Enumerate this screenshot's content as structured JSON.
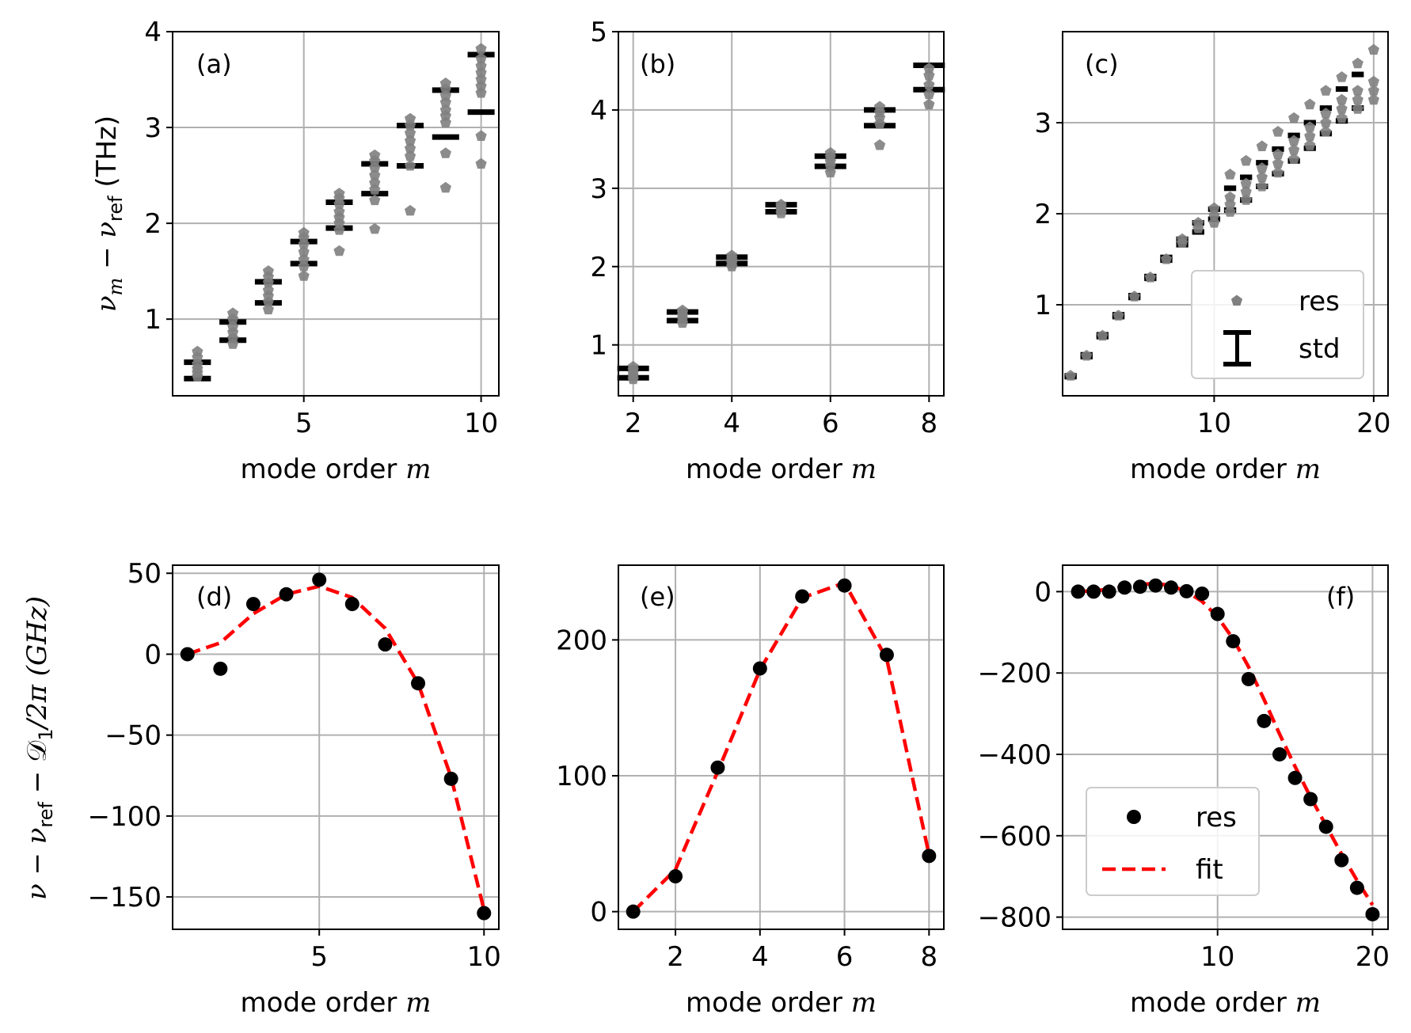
{
  "colors": {
    "res_marker": "#808080",
    "std_bar": "#000000",
    "fit_line": "#ff0000",
    "grid": "#b0b0b0",
    "res_dot": "#000000"
  },
  "labels": {
    "xlabel_prefix": "mode order ",
    "xlabel_var": "m",
    "ylabel_top": "ν",
    "ylabel_top_sub": "m",
    "ylabel_top_minus": " − ν",
    "ylabel_top_ref": "ref",
    "ylabel_top_unit": " (THz)",
    "ylabel_bottom": "ν − ν",
    "ylabel_bottom_ref": "ref",
    "ylabel_bottom_rest": " − 𝒟",
    "ylabel_bottom_sub": "1",
    "ylabel_bottom_end": "/2π  (GHz)"
  },
  "legend_top": {
    "res": "res",
    "std": "std"
  },
  "legend_bottom": {
    "res": "res",
    "fit": "fit"
  },
  "chart_data": [
    {
      "panel": "(a)",
      "type": "scatter",
      "xlabel": "mode order m",
      "ylabel": "ν_m − ν_ref (THz)",
      "xlim": [
        1.3,
        10.5
      ],
      "ylim": [
        0.2,
        4.0
      ],
      "xticks": [
        5,
        10
      ],
      "yticks": [
        1,
        2,
        3,
        4
      ],
      "grid": true,
      "std_bars": [
        {
          "x": 2,
          "low": 0.38,
          "high": 0.55
        },
        {
          "x": 3,
          "low": 0.78,
          "high": 0.97
        },
        {
          "x": 4,
          "low": 1.17,
          "high": 1.39
        },
        {
          "x": 5,
          "low": 1.58,
          "high": 1.81
        },
        {
          "x": 6,
          "low": 1.95,
          "high": 2.22
        },
        {
          "x": 7,
          "low": 2.31,
          "high": 2.62
        },
        {
          "x": 8,
          "low": 2.6,
          "high": 3.02
        },
        {
          "x": 9,
          "low": 2.9,
          "high": 3.39
        },
        {
          "x": 10,
          "low": 3.16,
          "high": 3.76
        }
      ],
      "res_points": [
        {
          "x": 2,
          "y": [
            0.4,
            0.44,
            0.48,
            0.53,
            0.6,
            0.66
          ]
        },
        {
          "x": 3,
          "y": [
            0.74,
            0.8,
            0.86,
            0.92,
            1.0,
            1.06
          ]
        },
        {
          "x": 4,
          "y": [
            1.1,
            1.18,
            1.24,
            1.3,
            1.38,
            1.44,
            1.5
          ]
        },
        {
          "x": 5,
          "y": [
            1.45,
            1.55,
            1.62,
            1.7,
            1.78,
            1.85,
            1.9
          ]
        },
        {
          "x": 6,
          "y": [
            1.71,
            1.93,
            2.0,
            2.06,
            2.12,
            2.2,
            2.26,
            2.31
          ]
        },
        {
          "x": 7,
          "y": [
            1.94,
            2.24,
            2.35,
            2.42,
            2.5,
            2.58,
            2.65,
            2.71
          ]
        },
        {
          "x": 8,
          "y": [
            2.13,
            2.6,
            2.7,
            2.78,
            2.86,
            2.94,
            3.02,
            3.09
          ]
        },
        {
          "x": 9,
          "y": [
            2.37,
            2.73,
            3.05,
            3.12,
            3.18,
            3.26,
            3.33,
            3.4,
            3.46
          ]
        },
        {
          "x": 10,
          "y": [
            2.62,
            2.91,
            3.36,
            3.43,
            3.5,
            3.57,
            3.64,
            3.72,
            3.82
          ]
        }
      ],
      "legend": null
    },
    {
      "panel": "(b)",
      "type": "scatter",
      "xlabel": "mode order m",
      "xlim": [
        1.7,
        8.3
      ],
      "ylim": [
        0.35,
        5.0
      ],
      "xticks": [
        2,
        4,
        6,
        8
      ],
      "yticks": [
        1,
        2,
        3,
        4,
        5
      ],
      "grid": true,
      "std_bars": [
        {
          "x": 2,
          "low": 0.58,
          "high": 0.7
        },
        {
          "x": 3,
          "low": 1.31,
          "high": 1.42
        },
        {
          "x": 4,
          "low": 2.04,
          "high": 2.12
        },
        {
          "x": 5,
          "low": 2.7,
          "high": 2.79
        },
        {
          "x": 6,
          "low": 3.28,
          "high": 3.41
        },
        {
          "x": 7,
          "low": 3.8,
          "high": 4.0
        },
        {
          "x": 8,
          "low": 4.26,
          "high": 4.57
        }
      ],
      "res_points": [
        {
          "x": 2,
          "y": [
            0.56,
            0.6,
            0.64,
            0.68,
            0.72
          ]
        },
        {
          "x": 3,
          "y": [
            1.28,
            1.33,
            1.37,
            1.41,
            1.44
          ]
        },
        {
          "x": 4,
          "y": [
            2.0,
            2.04,
            2.08,
            2.11,
            2.14
          ]
        },
        {
          "x": 5,
          "y": [
            2.68,
            2.72,
            2.76,
            2.79
          ]
        },
        {
          "x": 6,
          "y": [
            3.2,
            3.28,
            3.34,
            3.4,
            3.45
          ]
        },
        {
          "x": 7,
          "y": [
            3.55,
            3.82,
            3.9,
            3.97,
            4.04
          ]
        },
        {
          "x": 8,
          "y": [
            4.07,
            4.2,
            4.32,
            4.44,
            4.53
          ]
        }
      ],
      "legend": null
    },
    {
      "panel": "(c)",
      "type": "scatter",
      "xlabel": "mode order m",
      "xlim": [
        0.5,
        20.9
      ],
      "ylim": [
        0.0,
        4.0
      ],
      "xticks": [
        10,
        20
      ],
      "yticks": [
        1,
        2,
        3
      ],
      "grid": true,
      "std_bars": [
        {
          "x": 1,
          "low": 0.21,
          "high": 0.22
        },
        {
          "x": 2,
          "low": 0.43,
          "high": 0.45
        },
        {
          "x": 3,
          "low": 0.65,
          "high": 0.67
        },
        {
          "x": 4,
          "low": 0.87,
          "high": 0.89
        },
        {
          "x": 5,
          "low": 1.08,
          "high": 1.1
        },
        {
          "x": 6,
          "low": 1.29,
          "high": 1.31
        },
        {
          "x": 7,
          "low": 1.49,
          "high": 1.52
        },
        {
          "x": 8,
          "low": 1.66,
          "high": 1.72
        },
        {
          "x": 9,
          "low": 1.8,
          "high": 1.9
        },
        {
          "x": 10,
          "low": 1.94,
          "high": 2.05
        },
        {
          "x": 11,
          "low": 2.04,
          "high": 2.28
        },
        {
          "x": 12,
          "low": 2.15,
          "high": 2.4
        },
        {
          "x": 13,
          "low": 2.3,
          "high": 2.56
        },
        {
          "x": 14,
          "low": 2.44,
          "high": 2.71
        },
        {
          "x": 15,
          "low": 2.58,
          "high": 2.86
        },
        {
          "x": 16,
          "low": 2.72,
          "high": 3.0
        },
        {
          "x": 17,
          "low": 2.88,
          "high": 3.16
        },
        {
          "x": 18,
          "low": 3.02,
          "high": 3.37
        },
        {
          "x": 19,
          "low": 3.16,
          "high": 3.53
        }
      ],
      "res_points": [
        {
          "x": 1,
          "y": [
            0.22
          ]
        },
        {
          "x": 2,
          "y": [
            0.44
          ]
        },
        {
          "x": 3,
          "y": [
            0.66
          ]
        },
        {
          "x": 4,
          "y": [
            0.88
          ]
        },
        {
          "x": 5,
          "y": [
            1.09
          ]
        },
        {
          "x": 6,
          "y": [
            1.3
          ]
        },
        {
          "x": 7,
          "y": [
            1.5
          ]
        },
        {
          "x": 8,
          "y": [
            1.68,
            1.72
          ]
        },
        {
          "x": 9,
          "y": [
            1.84,
            1.9
          ]
        },
        {
          "x": 10,
          "y": [
            1.9,
            1.98,
            2.06
          ]
        },
        {
          "x": 11,
          "y": [
            2.02,
            2.1,
            2.18,
            2.43
          ]
        },
        {
          "x": 12,
          "y": [
            2.15,
            2.24,
            2.33,
            2.58
          ]
        },
        {
          "x": 13,
          "y": [
            2.3,
            2.4,
            2.5,
            2.74
          ]
        },
        {
          "x": 14,
          "y": [
            2.45,
            2.55,
            2.65,
            2.9
          ]
        },
        {
          "x": 15,
          "y": [
            2.6,
            2.7,
            2.8,
            3.05
          ]
        },
        {
          "x": 16,
          "y": [
            2.75,
            2.85,
            2.95,
            3.2
          ]
        },
        {
          "x": 17,
          "y": [
            2.9,
            3.0,
            3.1,
            3.35
          ]
        },
        {
          "x": 18,
          "y": [
            3.05,
            3.15,
            3.25,
            3.5
          ]
        },
        {
          "x": 19,
          "y": [
            3.15,
            3.25,
            3.35,
            3.65
          ]
        },
        {
          "x": 20,
          "y": [
            3.25,
            3.35,
            3.45,
            3.8
          ]
        }
      ],
      "legend": {
        "placement": "lower right",
        "entries": [
          "res",
          "std"
        ]
      }
    },
    {
      "panel": "(d)",
      "type": "scatter",
      "xlabel": "mode order m",
      "ylabel": "ν − ν_ref − 𝒟_1/2π  (GHz)",
      "xlim": [
        0.55,
        10.45
      ],
      "ylim": [
        -170,
        55
      ],
      "xticks": [
        5,
        10
      ],
      "yticks": [
        -150,
        -100,
        -50,
        0,
        50
      ],
      "grid": true,
      "res": {
        "x": [
          1,
          2,
          3,
          4,
          5,
          6,
          7,
          8,
          9,
          10
        ],
        "y": [
          0,
          -9,
          31,
          37,
          46,
          31,
          6,
          -18,
          -77,
          -160
        ]
      },
      "fit": {
        "x": [
          1,
          2,
          3,
          4,
          5,
          6,
          7,
          8,
          9,
          10
        ],
        "y": [
          0,
          7,
          25,
          37,
          42,
          35,
          16,
          -18,
          -76,
          -158
        ]
      },
      "legend": null
    },
    {
      "panel": "(e)",
      "type": "scatter",
      "xlabel": "mode order m",
      "xlim": [
        0.65,
        8.35
      ],
      "ylim": [
        -13,
        255
      ],
      "xticks": [
        2,
        4,
        6,
        8
      ],
      "yticks": [
        0,
        100,
        200
      ],
      "grid": true,
      "res": {
        "x": [
          1,
          2,
          3,
          4,
          5,
          6,
          7,
          8
        ],
        "y": [
          0,
          26,
          106,
          179,
          232,
          240,
          189,
          41
        ]
      },
      "fit": {
        "x": [
          1,
          2,
          3,
          4,
          5,
          6,
          7,
          8
        ],
        "y": [
          0,
          31,
          103,
          178,
          231,
          242,
          186,
          42
        ]
      },
      "legend": null
    },
    {
      "panel": "(f)",
      "type": "scatter",
      "xlabel": "mode order m",
      "xlim": [
        0.0,
        21.0
      ],
      "ylim": [
        -830,
        65
      ],
      "xticks": [
        10,
        20
      ],
      "yticks": [
        -800,
        -600,
        -400,
        -200,
        0
      ],
      "grid": true,
      "res": {
        "x": [
          1,
          2,
          3,
          4,
          5,
          6,
          7,
          8,
          9,
          10,
          11,
          12,
          13,
          14,
          15,
          16,
          17,
          18,
          19,
          20
        ],
        "y": [
          0,
          0,
          0,
          10,
          12,
          15,
          10,
          1,
          -5,
          -55,
          -122,
          -215,
          -318,
          -400,
          -458,
          -510,
          -578,
          -660,
          -728,
          -793
        ]
      },
      "fit": {
        "x": [
          1,
          2,
          3,
          4,
          5,
          6,
          7,
          8,
          9,
          10,
          11,
          12,
          13,
          14,
          15,
          16,
          17,
          18,
          19,
          20
        ],
        "y": [
          0,
          2,
          6,
          12,
          18,
          20,
          15,
          0,
          -24,
          -62,
          -116,
          -185,
          -265,
          -350,
          -430,
          -505,
          -575,
          -645,
          -710,
          -770
        ]
      },
      "legend": {
        "placement": "lower left",
        "entries": [
          "res",
          "fit"
        ]
      }
    }
  ]
}
